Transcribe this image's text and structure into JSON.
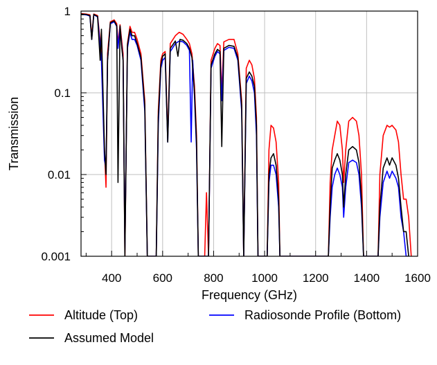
{
  "chart_data": {
    "type": "line",
    "xlabel": "Frequency (GHz)",
    "ylabel": "Transmission",
    "xlim": [
      280,
      1600
    ],
    "ylim": [
      0.001,
      1
    ],
    "y_scale": "log",
    "x_ticks": [
      400,
      600,
      800,
      1000,
      1200,
      1400,
      1600
    ],
    "y_ticks": [
      0.001,
      0.01,
      0.1,
      1
    ],
    "y_tick_labels": [
      "0.001",
      "0.01",
      "0.1",
      "1"
    ],
    "grid": true,
    "legend_position": "bottom",
    "series": [
      {
        "name": "Altitude (Top)",
        "color": "#ff0000",
        "points": [
          [
            280,
            0.93
          ],
          [
            300,
            0.92
          ],
          [
            315,
            0.9
          ],
          [
            322,
            0.5
          ],
          [
            330,
            0.92
          ],
          [
            345,
            0.88
          ],
          [
            360,
            0.3
          ],
          [
            372,
            0.02
          ],
          [
            378,
            0.007
          ],
          [
            384,
            0.3
          ],
          [
            395,
            0.74
          ],
          [
            410,
            0.78
          ],
          [
            420,
            0.7
          ],
          [
            425,
            0.4
          ],
          [
            433,
            0.68
          ],
          [
            445,
            0.3
          ],
          [
            452,
            0.001
          ],
          [
            462,
            0.4
          ],
          [
            472,
            0.65
          ],
          [
            480,
            0.55
          ],
          [
            490,
            0.55
          ],
          [
            500,
            0.45
          ],
          [
            515,
            0.3
          ],
          [
            530,
            0.08
          ],
          [
            540,
            0.001
          ],
          [
            575,
            0.001
          ],
          [
            583,
            0.06
          ],
          [
            593,
            0.25
          ],
          [
            600,
            0.3
          ],
          [
            610,
            0.32
          ],
          [
            620,
            0.03
          ],
          [
            630,
            0.4
          ],
          [
            650,
            0.5
          ],
          [
            665,
            0.55
          ],
          [
            680,
            0.52
          ],
          [
            695,
            0.45
          ],
          [
            705,
            0.4
          ],
          [
            715,
            0.3
          ],
          [
            725,
            0.12
          ],
          [
            733,
            0.03
          ],
          [
            740,
            0.001
          ],
          [
            765,
            0.001
          ],
          [
            772,
            0.006
          ],
          [
            780,
            0.001
          ],
          [
            790,
            0.25
          ],
          [
            805,
            0.35
          ],
          [
            815,
            0.4
          ],
          [
            825,
            0.38
          ],
          [
            832,
            0.1
          ],
          [
            840,
            0.42
          ],
          [
            860,
            0.45
          ],
          [
            880,
            0.45
          ],
          [
            895,
            0.3
          ],
          [
            910,
            0.08
          ],
          [
            918,
            0.001
          ],
          [
            928,
            0.2
          ],
          [
            940,
            0.25
          ],
          [
            950,
            0.22
          ],
          [
            960,
            0.15
          ],
          [
            968,
            0.05
          ],
          [
            974,
            0.001
          ],
          [
            1010,
            0.001
          ],
          [
            1017,
            0.02
          ],
          [
            1025,
            0.04
          ],
          [
            1035,
            0.037
          ],
          [
            1045,
            0.025
          ],
          [
            1055,
            0.008
          ],
          [
            1060,
            0.001
          ],
          [
            1250,
            0.001
          ],
          [
            1257,
            0.008
          ],
          [
            1265,
            0.02
          ],
          [
            1275,
            0.03
          ],
          [
            1285,
            0.045
          ],
          [
            1295,
            0.04
          ],
          [
            1305,
            0.02
          ],
          [
            1310,
            0.008
          ],
          [
            1318,
            0.02
          ],
          [
            1330,
            0.045
          ],
          [
            1345,
            0.05
          ],
          [
            1360,
            0.045
          ],
          [
            1370,
            0.03
          ],
          [
            1380,
            0.01
          ],
          [
            1388,
            0.001
          ],
          [
            1445,
            0.001
          ],
          [
            1452,
            0.01
          ],
          [
            1465,
            0.03
          ],
          [
            1480,
            0.04
          ],
          [
            1490,
            0.038
          ],
          [
            1500,
            0.04
          ],
          [
            1515,
            0.035
          ],
          [
            1525,
            0.025
          ],
          [
            1535,
            0.01
          ],
          [
            1545,
            0.005
          ],
          [
            1555,
            0.005
          ],
          [
            1565,
            0.003
          ],
          [
            1575,
            0.001
          ]
        ]
      },
      {
        "name": "Radiosonde Profile (Bottom)",
        "color": "#0000ff",
        "points": [
          [
            280,
            0.91
          ],
          [
            300,
            0.9
          ],
          [
            315,
            0.87
          ],
          [
            322,
            0.45
          ],
          [
            330,
            0.9
          ],
          [
            345,
            0.85
          ],
          [
            360,
            0.25
          ],
          [
            372,
            0.015
          ],
          [
            378,
            0.012
          ],
          [
            384,
            0.25
          ],
          [
            395,
            0.7
          ],
          [
            410,
            0.74
          ],
          [
            420,
            0.65
          ],
          [
            425,
            0.35
          ],
          [
            433,
            0.64
          ],
          [
            445,
            0.25
          ],
          [
            452,
            0.0012
          ],
          [
            462,
            0.35
          ],
          [
            472,
            0.55
          ],
          [
            480,
            0.45
          ],
          [
            490,
            0.45
          ],
          [
            500,
            0.38
          ],
          [
            515,
            0.25
          ],
          [
            530,
            0.06
          ],
          [
            540,
            0.001
          ],
          [
            575,
            0.001
          ],
          [
            583,
            0.04
          ],
          [
            593,
            0.2
          ],
          [
            600,
            0.25
          ],
          [
            610,
            0.27
          ],
          [
            620,
            0.025
          ],
          [
            630,
            0.32
          ],
          [
            650,
            0.4
          ],
          [
            665,
            0.43
          ],
          [
            680,
            0.42
          ],
          [
            695,
            0.38
          ],
          [
            705,
            0.33
          ],
          [
            712,
            0.025
          ],
          [
            718,
            0.25
          ],
          [
            725,
            0.09
          ],
          [
            733,
            0.02
          ],
          [
            740,
            0.001
          ],
          [
            765,
            0.001
          ],
          [
            780,
            0.001
          ],
          [
            790,
            0.2
          ],
          [
            805,
            0.28
          ],
          [
            815,
            0.32
          ],
          [
            825,
            0.3
          ],
          [
            832,
            0.08
          ],
          [
            840,
            0.33
          ],
          [
            860,
            0.36
          ],
          [
            880,
            0.35
          ],
          [
            895,
            0.25
          ],
          [
            910,
            0.06
          ],
          [
            918,
            0.001
          ],
          [
            928,
            0.13
          ],
          [
            940,
            0.16
          ],
          [
            950,
            0.14
          ],
          [
            960,
            0.1
          ],
          [
            968,
            0.03
          ],
          [
            974,
            0.001
          ],
          [
            1010,
            0.001
          ],
          [
            1017,
            0.008
          ],
          [
            1025,
            0.013
          ],
          [
            1035,
            0.013
          ],
          [
            1045,
            0.01
          ],
          [
            1055,
            0.004
          ],
          [
            1060,
            0.001
          ],
          [
            1250,
            0.001
          ],
          [
            1257,
            0.003
          ],
          [
            1265,
            0.007
          ],
          [
            1275,
            0.01
          ],
          [
            1285,
            0.012
          ],
          [
            1295,
            0.01
          ],
          [
            1305,
            0.007
          ],
          [
            1310,
            0.003
          ],
          [
            1318,
            0.007
          ],
          [
            1330,
            0.014
          ],
          [
            1345,
            0.015
          ],
          [
            1360,
            0.014
          ],
          [
            1370,
            0.01
          ],
          [
            1380,
            0.004
          ],
          [
            1388,
            0.001
          ],
          [
            1445,
            0.001
          ],
          [
            1452,
            0.003
          ],
          [
            1465,
            0.008
          ],
          [
            1480,
            0.011
          ],
          [
            1490,
            0.009
          ],
          [
            1500,
            0.011
          ],
          [
            1515,
            0.009
          ],
          [
            1525,
            0.007
          ],
          [
            1535,
            0.003
          ],
          [
            1545,
            0.002
          ],
          [
            1555,
            0.001
          ],
          [
            1565,
            0.001
          ]
        ]
      },
      {
        "name": "Assumed Model",
        "color": "#000000",
        "points": [
          [
            280,
            0.92
          ],
          [
            300,
            0.91
          ],
          [
            315,
            0.88
          ],
          [
            322,
            0.45
          ],
          [
            330,
            0.91
          ],
          [
            345,
            0.86
          ],
          [
            355,
            0.25
          ],
          [
            360,
            0.6
          ],
          [
            372,
            0.02
          ],
          [
            378,
            0.01
          ],
          [
            384,
            0.25
          ],
          [
            395,
            0.72
          ],
          [
            410,
            0.76
          ],
          [
            420,
            0.66
          ],
          [
            425,
            0.008
          ],
          [
            433,
            0.66
          ],
          [
            440,
            0.35
          ],
          [
            445,
            0.25
          ],
          [
            452,
            0.001
          ],
          [
            462,
            0.38
          ],
          [
            472,
            0.6
          ],
          [
            480,
            0.5
          ],
          [
            490,
            0.5
          ],
          [
            500,
            0.4
          ],
          [
            515,
            0.27
          ],
          [
            530,
            0.07
          ],
          [
            540,
            0.001
          ],
          [
            575,
            0.001
          ],
          [
            583,
            0.05
          ],
          [
            593,
            0.22
          ],
          [
            600,
            0.28
          ],
          [
            610,
            0.3
          ],
          [
            620,
            0.025
          ],
          [
            630,
            0.35
          ],
          [
            650,
            0.43
          ],
          [
            660,
            0.28
          ],
          [
            668,
            0.45
          ],
          [
            680,
            0.44
          ],
          [
            695,
            0.4
          ],
          [
            705,
            0.35
          ],
          [
            715,
            0.27
          ],
          [
            725,
            0.1
          ],
          [
            733,
            0.025
          ],
          [
            740,
            0.001
          ],
          [
            765,
            0.001
          ],
          [
            780,
            0.001
          ],
          [
            790,
            0.22
          ],
          [
            805,
            0.3
          ],
          [
            815,
            0.34
          ],
          [
            825,
            0.32
          ],
          [
            832,
            0.022
          ],
          [
            840,
            0.35
          ],
          [
            860,
            0.38
          ],
          [
            880,
            0.37
          ],
          [
            895,
            0.27
          ],
          [
            910,
            0.07
          ],
          [
            918,
            0.001
          ],
          [
            928,
            0.15
          ],
          [
            940,
            0.18
          ],
          [
            950,
            0.16
          ],
          [
            960,
            0.12
          ],
          [
            968,
            0.04
          ],
          [
            974,
            0.001
          ],
          [
            1010,
            0.001
          ],
          [
            1017,
            0.01
          ],
          [
            1025,
            0.016
          ],
          [
            1035,
            0.018
          ],
          [
            1045,
            0.013
          ],
          [
            1055,
            0.005
          ],
          [
            1060,
            0.001
          ],
          [
            1250,
            0.001
          ],
          [
            1257,
            0.004
          ],
          [
            1265,
            0.012
          ],
          [
            1275,
            0.015
          ],
          [
            1285,
            0.018
          ],
          [
            1295,
            0.015
          ],
          [
            1305,
            0.01
          ],
          [
            1310,
            0.004
          ],
          [
            1318,
            0.01
          ],
          [
            1330,
            0.02
          ],
          [
            1345,
            0.022
          ],
          [
            1360,
            0.02
          ],
          [
            1370,
            0.014
          ],
          [
            1380,
            0.005
          ],
          [
            1388,
            0.001
          ],
          [
            1445,
            0.001
          ],
          [
            1452,
            0.004
          ],
          [
            1465,
            0.012
          ],
          [
            1480,
            0.016
          ],
          [
            1490,
            0.013
          ],
          [
            1500,
            0.016
          ],
          [
            1515,
            0.013
          ],
          [
            1525,
            0.009
          ],
          [
            1535,
            0.004
          ],
          [
            1545,
            0.002
          ],
          [
            1555,
            0.002
          ],
          [
            1565,
            0.001
          ]
        ]
      }
    ]
  }
}
